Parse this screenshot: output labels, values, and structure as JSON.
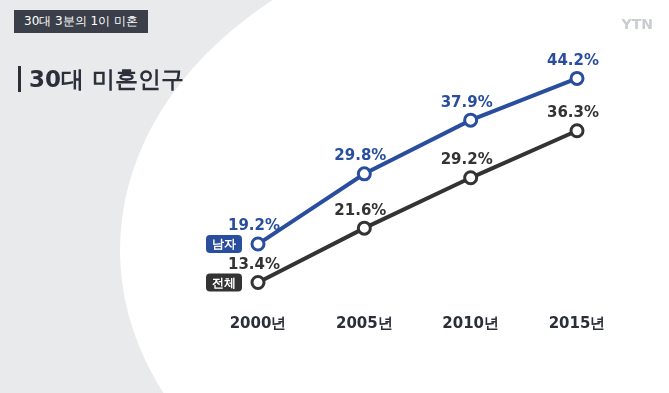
{
  "chart_data": {
    "type": "line",
    "header": "30대 3분의 1이 미혼",
    "title": "30대 미혼인구",
    "watermark": "YTN",
    "categories": [
      "2000년",
      "2005년",
      "2010년",
      "2015년"
    ],
    "series": [
      {
        "name": "남자",
        "color": "#2a4e9e",
        "marker": "circle",
        "values": [
          19.2,
          29.8,
          37.9,
          44.2
        ],
        "value_labels": [
          "19.2%",
          "29.8%",
          "37.9%",
          "44.2%"
        ]
      },
      {
        "name": "전체",
        "color": "#333333",
        "marker": "circle",
        "values": [
          13.4,
          21.6,
          29.2,
          36.3
        ],
        "value_labels": [
          "13.4%",
          "21.6%",
          "29.2%",
          "36.3%"
        ]
      }
    ],
    "ylim": [
      10,
      50
    ],
    "grid": false,
    "data_labels": true,
    "tick_labels": "x"
  }
}
